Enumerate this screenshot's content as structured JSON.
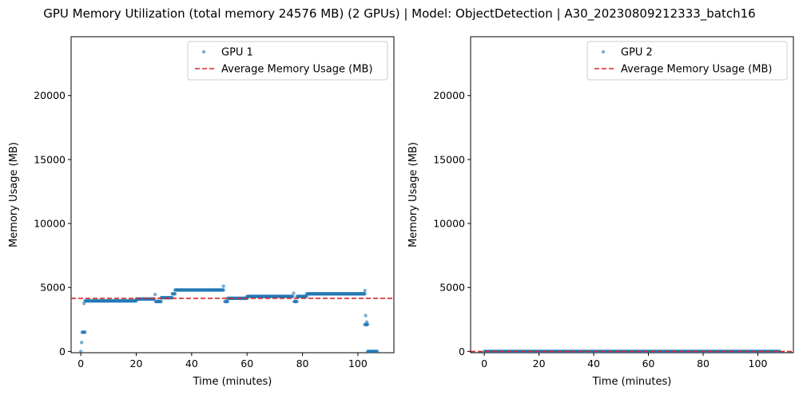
{
  "figure": {
    "suptitle": "GPU Memory Utilization (total memory 24576 MB) (2 GPUs) | Model: ObjectDetection | A30_20230809212333_batch16"
  },
  "colors": {
    "points": "#1f77b4",
    "average": "#d62728"
  },
  "chart_data": [
    {
      "type": "scatter",
      "title": "",
      "xlabel": "Time (minutes)",
      "ylabel": "Memory Usage (MB)",
      "xlim": [
        -3.5,
        113
      ],
      "ylim": [
        -100,
        24600
      ],
      "xticks": [
        0,
        20,
        40,
        60,
        80,
        100
      ],
      "yticks": [
        0,
        5000,
        10000,
        15000,
        20000
      ],
      "legend_position": "top-right",
      "series": [
        {
          "name": "GPU 1",
          "kind": "scatter",
          "segments": [
            {
              "x0": 0.3,
              "x1": 0.3,
              "y": 700
            },
            {
              "x0": 0.5,
              "x1": 1.5,
              "y": 1500
            },
            {
              "x0": 1.5,
              "x1": 20,
              "y": 3950
            },
            {
              "x0": 20,
              "x1": 26.5,
              "y": 4100
            },
            {
              "x0": 27,
              "x1": 29,
              "y": 3900
            },
            {
              "x0": 29,
              "x1": 33,
              "y": 4200
            },
            {
              "x0": 33,
              "x1": 34,
              "y": 4500
            },
            {
              "x0": 34,
              "x1": 51.5,
              "y": 4800
            },
            {
              "x0": 52,
              "x1": 53,
              "y": 3900
            },
            {
              "x0": 53,
              "x1": 60,
              "y": 4150
            },
            {
              "x0": 60,
              "x1": 76.5,
              "y": 4300
            },
            {
              "x0": 77,
              "x1": 78,
              "y": 3900
            },
            {
              "x0": 78,
              "x1": 81.5,
              "y": 4300
            },
            {
              "x0": 81.5,
              "x1": 102.5,
              "y": 4500
            },
            {
              "x0": 102.5,
              "x1": 103.5,
              "y": 2100
            },
            {
              "x0": 103.5,
              "x1": 107,
              "y": 0
            }
          ],
          "outliers": [
            {
              "x": 0,
              "y": 0
            },
            {
              "x": 26.8,
              "y": 4450
            },
            {
              "x": 51.5,
              "y": 5100
            },
            {
              "x": 76.8,
              "y": 4550
            },
            {
              "x": 102.5,
              "y": 4750
            },
            {
              "x": 102.8,
              "y": 2800
            },
            {
              "x": 103.2,
              "y": 2300
            },
            {
              "x": 1.2,
              "y": 3750
            }
          ]
        },
        {
          "name": "Average Memory Usage (MB)",
          "kind": "hline",
          "y": 4150
        }
      ]
    },
    {
      "type": "scatter",
      "title": "",
      "xlabel": "Time (minutes)",
      "ylabel": "Memory Usage (MB)",
      "xlim": [
        -5,
        113
      ],
      "ylim": [
        -100,
        24600
      ],
      "xticks": [
        0,
        20,
        40,
        60,
        80,
        100
      ],
      "yticks": [
        0,
        5000,
        10000,
        15000,
        20000
      ],
      "legend_position": "top-right",
      "series": [
        {
          "name": "GPU 2",
          "kind": "scatter",
          "segments": [
            {
              "x0": 0,
              "x1": 108,
              "y": 0
            }
          ],
          "outliers": []
        },
        {
          "name": "Average Memory Usage (MB)",
          "kind": "hline",
          "y": 0
        }
      ]
    }
  ]
}
